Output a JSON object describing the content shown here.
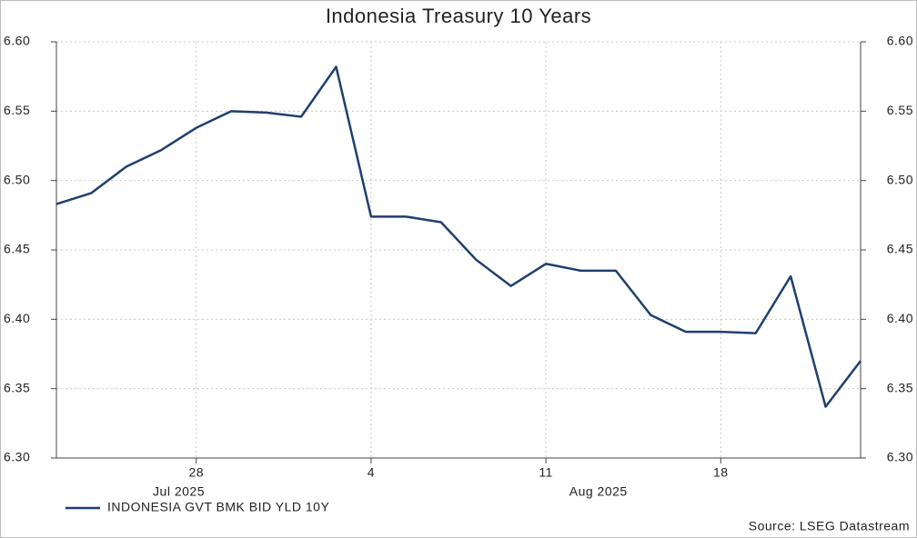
{
  "chart_data": {
    "type": "line",
    "title": "Indonesia Treasury 10 Years",
    "categories": [
      "2025-07-22",
      "2025-07-23",
      "2025-07-24",
      "2025-07-25",
      "2025-07-28",
      "2025-07-29",
      "2025-07-30",
      "2025-07-31",
      "2025-08-01",
      "2025-08-04",
      "2025-08-05",
      "2025-08-06",
      "2025-08-07",
      "2025-08-08",
      "2025-08-11",
      "2025-08-12",
      "2025-08-13",
      "2025-08-14",
      "2025-08-15",
      "2025-08-18",
      "2025-08-19",
      "2025-08-20",
      "2025-08-21",
      "2025-08-22"
    ],
    "xticks": [
      {
        "value": "2025-07-28",
        "label": "28"
      },
      {
        "value": "2025-08-04",
        "label": "4"
      },
      {
        "value": "2025-08-11",
        "label": "11"
      },
      {
        "value": "2025-08-18",
        "label": "18"
      }
    ],
    "xgroups": [
      "Jul 2025",
      "Aug 2025"
    ],
    "series": [
      {
        "name": "INDONESIA GVT BMK BID YLD 10Y",
        "color": "#1f3f6e",
        "values": [
          6.483,
          6.491,
          6.51,
          6.522,
          6.538,
          6.55,
          6.549,
          6.546,
          6.582,
          6.474,
          6.474,
          6.47,
          6.443,
          6.424,
          6.44,
          6.435,
          6.435,
          6.403,
          6.391,
          6.391,
          6.39,
          6.431,
          6.337,
          6.37
        ]
      }
    ],
    "ylim": [
      6.3,
      6.6
    ],
    "yticks": [
      {
        "value": 6.3,
        "label": "6.30"
      },
      {
        "value": 6.35,
        "label": "6.35"
      },
      {
        "value": 6.4,
        "label": "6.40"
      },
      {
        "value": 6.45,
        "label": "6.45"
      },
      {
        "value": 6.5,
        "label": "6.50"
      },
      {
        "value": 6.55,
        "label": "6.55"
      },
      {
        "value": 6.6,
        "label": "6.60"
      }
    ],
    "grid": true,
    "legend": "bottom-left",
    "source": "Source: LSEG Datastream"
  }
}
